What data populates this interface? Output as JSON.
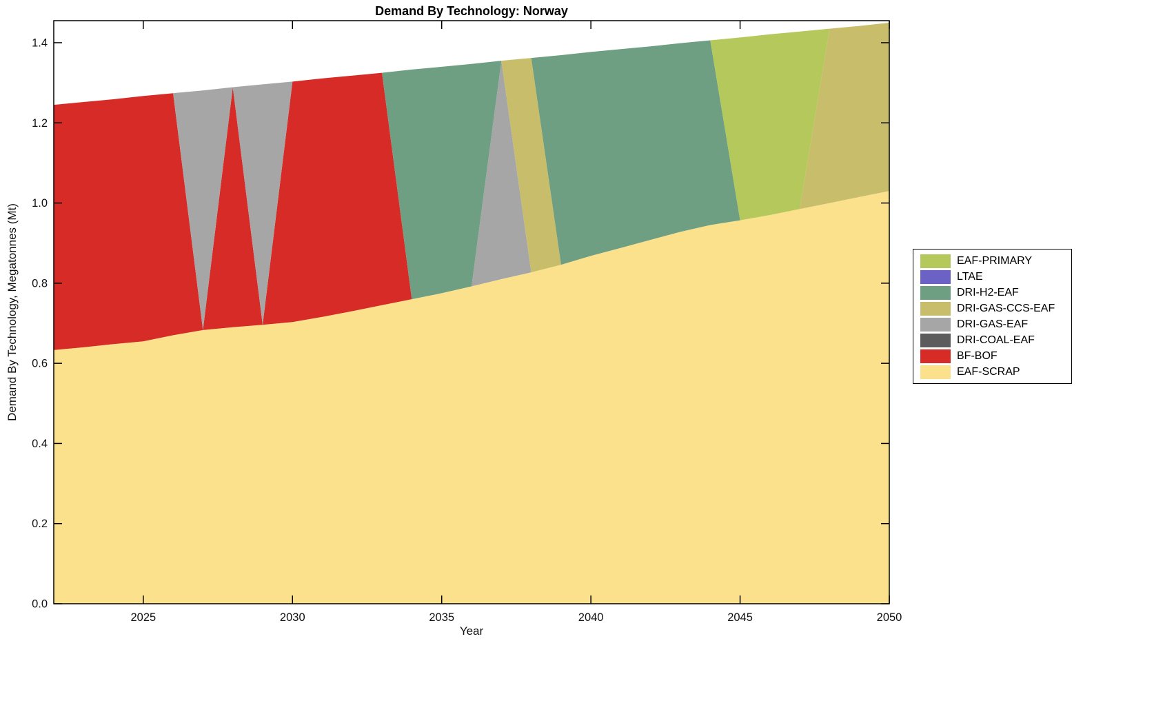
{
  "figure": {
    "title": "Demand By Technology: Norway",
    "xlabel": "Year",
    "ylabel": "Demand By Technology, Megatonnes (Mt)"
  },
  "axes": {
    "x_ticks": [
      "2025",
      "2030",
      "2035",
      "2040",
      "2045",
      "2050"
    ],
    "y_ticks": [
      "0.0",
      "0.2",
      "0.4",
      "0.6",
      "0.8",
      "1.0",
      "1.2",
      "1.4"
    ]
  },
  "legend": [
    {
      "label": "EAF-PRIMARY",
      "color": "#b5c85b"
    },
    {
      "label": "LTAE",
      "color": "#6c61c4"
    },
    {
      "label": "DRI-H2-EAF",
      "color": "#6e9f83"
    },
    {
      "label": "DRI-GAS-CCS-EAF",
      "color": "#c8bd6a"
    },
    {
      "label": "DRI-GAS-EAF",
      "color": "#a6a6a6"
    },
    {
      "label": "DRI-COAL-EAF",
      "color": "#5c5c5c"
    },
    {
      "label": "BF-BOF",
      "color": "#d62b27"
    },
    {
      "label": "EAF-SCRAP",
      "color": "#fbe18c"
    }
  ],
  "chart_data": {
    "type": "area",
    "stacked": true,
    "title": "Demand By Technology: Norway",
    "xlabel": "Year",
    "ylabel": "Demand By Technology, Megatonnes (Mt)",
    "xlim": [
      2022,
      2050
    ],
    "ylim": [
      0,
      1.455
    ],
    "grid": false,
    "legend_position": "right-outside",
    "x": [
      2022,
      2023,
      2024,
      2025,
      2026,
      2027,
      2028,
      2029,
      2030,
      2031,
      2032,
      2033,
      2034,
      2035,
      2036,
      2037,
      2038,
      2039,
      2040,
      2041,
      2042,
      2043,
      2044,
      2045,
      2046,
      2047,
      2048,
      2049,
      2050
    ],
    "series": [
      {
        "name": "EAF-SCRAP",
        "color": "#fbe18c",
        "values": [
          0.633,
          0.64,
          0.648,
          0.655,
          0.67,
          0.683,
          0.69,
          0.696,
          0.703,
          0.716,
          0.73,
          0.745,
          0.76,
          0.775,
          0.792,
          0.81,
          0.827,
          0.846,
          0.868,
          0.888,
          0.908,
          0.928,
          0.945,
          0.957,
          0.97,
          0.985,
          1.0,
          1.015,
          1.03
        ]
      },
      {
        "name": "BF-BOF",
        "color": "#d62b27",
        "values": [
          0.612,
          0.612,
          0.611,
          0.612,
          0.604,
          0,
          0.599,
          0,
          0.6,
          0.595,
          0.588,
          0.58,
          0,
          0,
          0,
          0,
          0,
          0,
          0,
          0,
          0,
          0,
          0,
          0,
          0,
          0,
          0,
          0,
          0
        ]
      },
      {
        "name": "DRI-COAL-EAF",
        "color": "#5c5c5c",
        "values": [
          0,
          0,
          0,
          0,
          0,
          0,
          0,
          0,
          0,
          0,
          0,
          0,
          0,
          0,
          0,
          0,
          0,
          0,
          0,
          0,
          0,
          0,
          0,
          0,
          0,
          0,
          0,
          0,
          0
        ]
      },
      {
        "name": "DRI-GAS-EAF",
        "color": "#a6a6a6",
        "values": [
          0,
          0,
          0,
          0,
          0,
          0.598,
          0,
          0.6,
          0,
          0,
          0,
          0,
          0,
          0,
          0,
          0.545,
          0,
          0,
          0,
          0,
          0,
          0,
          0,
          0,
          0,
          0,
          0,
          0,
          0
        ]
      },
      {
        "name": "DRI-GAS-CCS-EAF",
        "color": "#c8bd6a",
        "values": [
          0,
          0,
          0,
          0,
          0,
          0,
          0,
          0,
          0,
          0,
          0,
          0,
          0,
          0,
          0,
          0,
          0.535,
          0,
          0,
          0,
          0,
          0,
          0,
          0,
          0,
          0,
          0.435,
          0.427,
          0.42
        ]
      },
      {
        "name": "DRI-H2-EAF",
        "color": "#6e9f83",
        "values": [
          0,
          0,
          0,
          0,
          0,
          0,
          0,
          0,
          0,
          0,
          0,
          0,
          0.573,
          0.565,
          0.555,
          0,
          0,
          0.523,
          0.509,
          0.496,
          0.483,
          0.471,
          0.461,
          0,
          0,
          0,
          0,
          0,
          0
        ]
      },
      {
        "name": "LTAE",
        "color": "#6c61c4",
        "values": [
          0,
          0,
          0,
          0,
          0,
          0,
          0,
          0,
          0,
          0,
          0,
          0,
          0,
          0,
          0,
          0,
          0,
          0,
          0,
          0,
          0,
          0,
          0,
          0,
          0,
          0,
          0,
          0,
          0
        ]
      },
      {
        "name": "EAF-PRIMARY",
        "color": "#b5c85b",
        "values": [
          0,
          0,
          0,
          0,
          0,
          0,
          0,
          0,
          0,
          0,
          0,
          0,
          0,
          0,
          0,
          0,
          0,
          0,
          0,
          0,
          0,
          0,
          0,
          0.456,
          0.451,
          0.443,
          0,
          0,
          0
        ]
      }
    ]
  }
}
